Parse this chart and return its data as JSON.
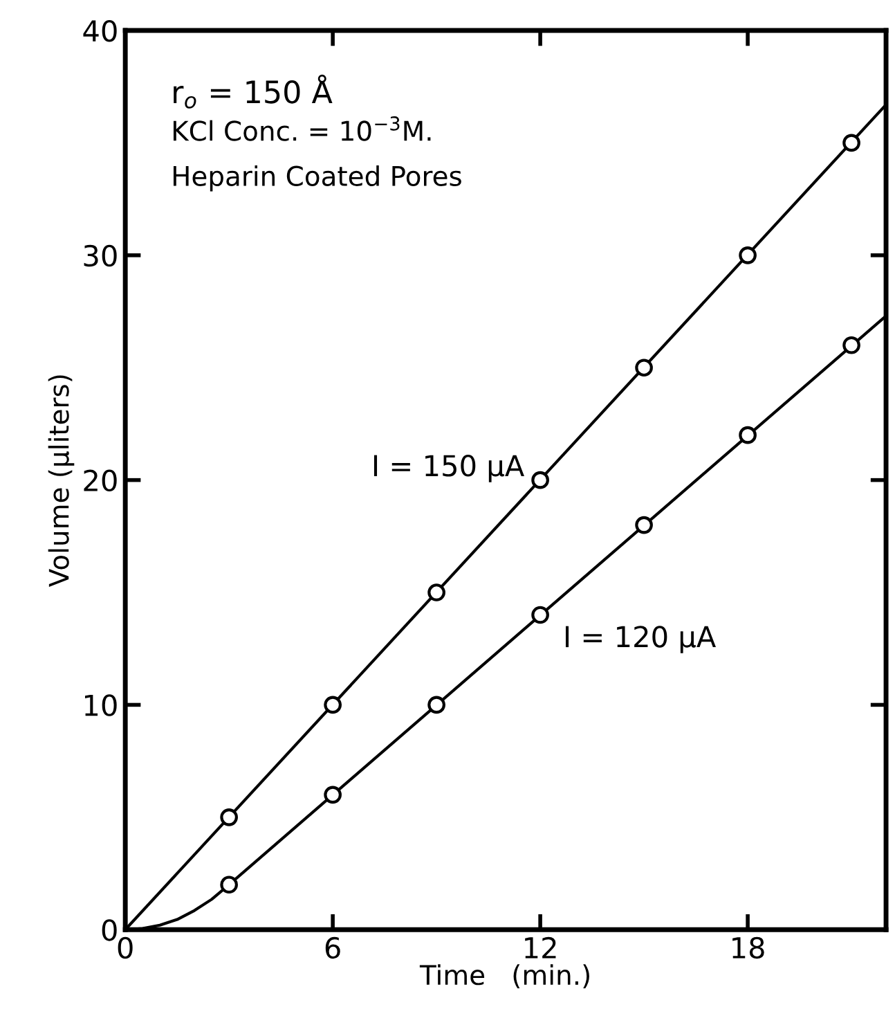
{
  "chart_data": {
    "type": "scatter",
    "xlabel": "Time   (min.)",
    "ylabel": "Volume (μliters)",
    "annotations": [
      "r$_{o}$ = 150 Å",
      "KCl Conc. = 10$^{−3}$M.",
      "Heparin Coated Pores"
    ],
    "xlim": [
      0,
      22
    ],
    "ylim": [
      0,
      40
    ],
    "xticks": [
      0,
      6,
      12,
      18
    ],
    "yticks": [
      0,
      10,
      20,
      30,
      40
    ],
    "grid": false,
    "marker": "circle",
    "series": [
      {
        "color": "#000000",
        "x": [
          3,
          6,
          9,
          12,
          15,
          18,
          21
        ],
        "values": [
          5,
          10,
          15,
          20,
          25,
          30,
          35
        ]
      },
      {
        "color": "#000000",
        "x": [
          3,
          6,
          9,
          12,
          15,
          18,
          21
        ],
        "values": [
          2,
          6,
          10,
          14,
          18,
          22,
          26
        ]
      },
      {
        "type": "line",
        "name": "I = 150 μA",
        "color": "#000000",
        "line_style": "solid",
        "marker": "none",
        "x": [
          0,
          22
        ],
        "values": [
          0,
          36.7
        ]
      },
      {
        "type": "line",
        "name": "I = 120 μA",
        "color": "#000000",
        "line_style": "solid",
        "marker": "none",
        "x": [
          0,
          0.5,
          1,
          1.5,
          2,
          2.5,
          3,
          22
        ],
        "values": [
          0,
          0.05,
          0.2,
          0.45,
          0.85,
          1.35,
          2,
          27.3
        ]
      }
    ]
  }
}
